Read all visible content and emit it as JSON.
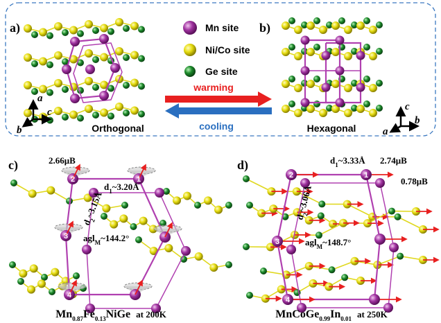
{
  "panel_labels": [
    "a)",
    "b)",
    "c)",
    "d)"
  ],
  "legend": [
    "Mn site",
    "Ni/Co site",
    "Ge site"
  ],
  "transition": {
    "warming": "warming",
    "cooling": "cooling"
  },
  "structure_names": [
    "Orthogonal",
    "Hexagonal"
  ],
  "axes_a": [
    "a",
    "c",
    "b"
  ],
  "axes_b": [
    "c",
    "b",
    "a"
  ],
  "panel_c": {
    "moment": "2.66μB",
    "d1": [
      "d",
      "1",
      "~3.20Å"
    ],
    "d2": [
      "d",
      "2",
      "~3.15Å"
    ],
    "angle": [
      "agl",
      "M",
      "~144.2°"
    ],
    "sites": [
      "1",
      "2",
      "3",
      "4"
    ],
    "caption": [
      "Mn",
      "0.87",
      "Fe",
      "0.13",
      "NiGe"
    ],
    "condition": "at 200K"
  },
  "panel_d": {
    "moments": [
      "2.74μB",
      "0.78μB"
    ],
    "d1": [
      "d",
      "1",
      "~3.33Å"
    ],
    "d2": [
      "d",
      "2",
      "~3.06Å"
    ],
    "angle": [
      "agl",
      "M",
      "~148.7°"
    ],
    "sites": [
      "1",
      "2",
      "3",
      "4"
    ],
    "caption": [
      "MnCoGe",
      "0.99",
      "In",
      "0.01"
    ],
    "condition": "at 250K"
  }
}
